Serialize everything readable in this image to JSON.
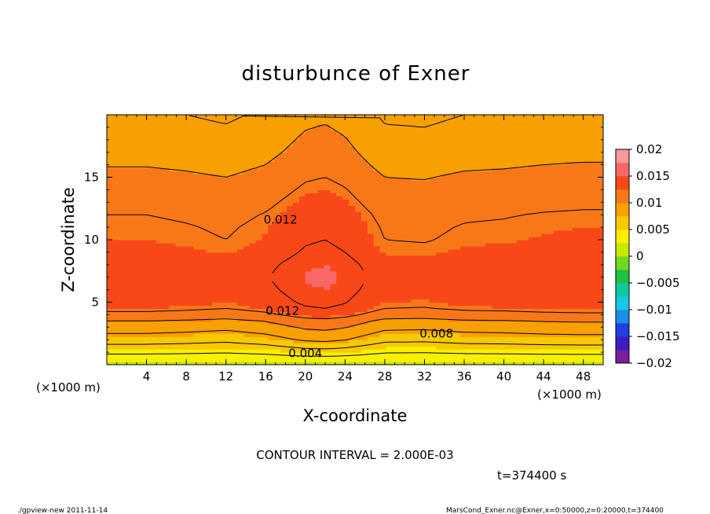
{
  "chart_data": {
    "type": "heatmap",
    "title": "disturbunce of Exner",
    "xlabel": "X-coordinate",
    "ylabel": "Z-coordinate",
    "xunit": "(×1000 m)",
    "yunit": "(×1000 m)",
    "xlim": [
      0,
      50
    ],
    "ylim": [
      0,
      20
    ],
    "xticks": [
      4,
      8,
      12,
      16,
      20,
      24,
      28,
      32,
      36,
      40,
      44,
      48
    ],
    "yticks": [
      5,
      10,
      15
    ],
    "contour_interval": "CONTOUR INTERVAL = 2.000E-03",
    "time_label": "t=374400 s",
    "colorbar": {
      "min": -0.02,
      "max": 0.02,
      "step": 0.0025,
      "tick_values": [
        0.02,
        0.015,
        0.01,
        0.005,
        0,
        -0.005,
        -0.01,
        -0.015,
        -0.02
      ],
      "tick_labels": [
        "0.02",
        "0.015",
        "0.01",
        "0.005",
        "0",
        "−0.005",
        "−0.01",
        "−0.015",
        "−0.02"
      ],
      "colors": [
        "#7a1fa0",
        "#3a1fc0",
        "#2040e0",
        "#1c8ee8",
        "#18c8e8",
        "#10c8a0",
        "#20c040",
        "#70d820",
        "#c8e800",
        "#f8f000",
        "#f8c800",
        "#f8a000",
        "#f87818",
        "#f84818",
        "#f86868",
        "#f89898"
      ]
    },
    "z_profile": {
      "z": [
        0,
        0.5,
        1,
        1.5,
        2,
        2.5,
        3,
        3.5,
        4,
        4.5,
        5,
        6,
        7,
        8,
        9,
        10,
        11,
        12,
        13,
        14,
        15,
        16,
        17,
        18,
        19,
        20
      ],
      "value": [
        0.0015,
        0.003,
        0.0043,
        0.0055,
        0.0068,
        0.0078,
        0.0088,
        0.0098,
        0.0113,
        0.0123,
        0.0128,
        0.0133,
        0.0136,
        0.0133,
        0.0127,
        0.0123,
        0.0121,
        0.0118,
        0.0113,
        0.0108,
        0.0103,
        0.0097,
        0.0092,
        0.0088,
        0.0084,
        0.008
      ]
    },
    "x_perturbation": {
      "x": [
        0,
        4,
        8,
        12,
        16,
        20,
        22,
        24,
        28,
        32,
        36,
        40,
        44,
        48,
        50
      ],
      "value": [
        0.0002,
        0.0002,
        0,
        -0.0003,
        0.0003,
        0.0015,
        0.0017,
        0.0013,
        -0.0003,
        -0.0004,
        0,
        0.0001,
        0.0003,
        0.0004,
        0.0004
      ]
    },
    "contour_levels": [
      0.004,
      0.006,
      0.008,
      0.01,
      0.012,
      0.014
    ],
    "contour_labels": [
      {
        "text": "0.012",
        "x": 15.8,
        "z": 11.6
      },
      {
        "text": "0.012",
        "x": 16.0,
        "z": 4.3
      },
      {
        "text": "0.008",
        "x": 31.5,
        "z": 2.5
      },
      {
        "text": "0.004",
        "x": 18.3,
        "z": 0.9
      }
    ]
  },
  "footer": {
    "left": "./gpview-new   2011-11-14",
    "right": "MarsCond_Exner.nc@Exner,x=0:50000,z=0:20000,t=374400"
  }
}
